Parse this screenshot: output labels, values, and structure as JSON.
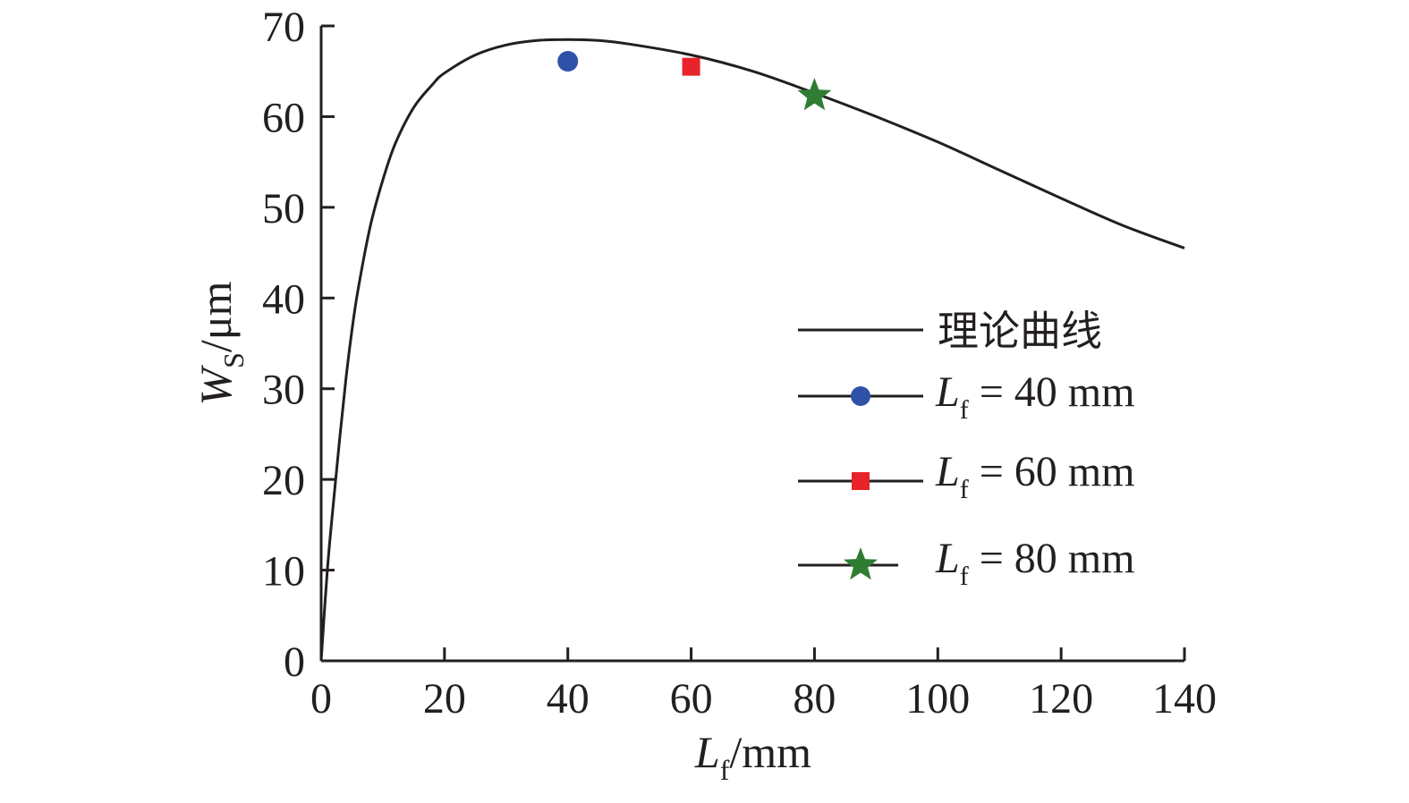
{
  "chart_data": {
    "type": "line",
    "xlabel": {
      "main": "L",
      "sub": "f",
      "unit": "/mm"
    },
    "ylabel": {
      "main": "W",
      "sub": "S",
      "unit": "/μm"
    },
    "xlim": [
      0,
      140
    ],
    "ylim": [
      0,
      70
    ],
    "xticks": [
      0,
      20,
      40,
      60,
      80,
      100,
      120,
      140
    ],
    "yticks": [
      0,
      10,
      20,
      30,
      40,
      50,
      60,
      70
    ],
    "grid": false,
    "legend_position": "right-middle",
    "series": [
      {
        "name": "理论曲线",
        "kind": "line",
        "color": "#231f20",
        "x": [
          0,
          1,
          2,
          3,
          4,
          5,
          6,
          8,
          10,
          12,
          15,
          18,
          20,
          25,
          30,
          35,
          40,
          45,
          50,
          60,
          70,
          80,
          90,
          100,
          110,
          120,
          130,
          140
        ],
        "y": [
          0,
          10,
          17.5,
          24.5,
          31,
          36.5,
          41,
          48,
          53,
          57,
          61,
          63.5,
          64.8,
          66.8,
          67.9,
          68.4,
          68.5,
          68.4,
          68.0,
          66.8,
          65.0,
          62.6,
          60.0,
          57.2,
          54.1,
          51.0,
          48.0,
          45.5
        ]
      },
      {
        "name": "L_f = 40 mm",
        "label": {
          "main": "L",
          "sub": "f",
          "rest": " = 40 mm"
        },
        "kind": "marker",
        "marker": "circle",
        "color": "#2f52a8",
        "x": [
          40
        ],
        "y": [
          66.1
        ]
      },
      {
        "name": "L_f = 60 mm",
        "label": {
          "main": "L",
          "sub": "f",
          "rest": " = 60 mm"
        },
        "kind": "marker",
        "marker": "square",
        "color": "#e8232a",
        "x": [
          60
        ],
        "y": [
          65.5
        ]
      },
      {
        "name": "L_f = 80 mm",
        "label": {
          "main": "L",
          "sub": "f",
          "rest": " = 80 mm"
        },
        "kind": "marker",
        "marker": "star",
        "color": "#2e7d32",
        "x": [
          80
        ],
        "y": [
          62.3
        ]
      }
    ]
  }
}
